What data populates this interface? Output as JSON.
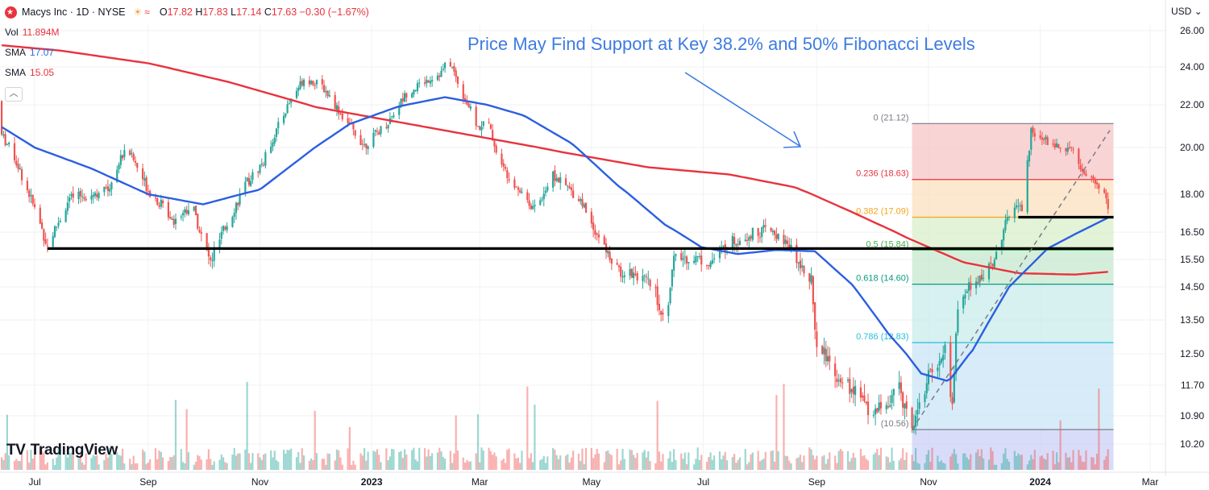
{
  "header": {
    "symbol": "Macys Inc · 1D · NYSE",
    "open_label": "O",
    "open": "17.82",
    "high_label": "H",
    "high": "17.83",
    "low_label": "L",
    "low": "17.14",
    "close_label": "C",
    "close": "17.63",
    "change": "−0.30 (−1.67%)"
  },
  "indicators": {
    "vol_label": "Vol",
    "vol_value": "11.894M",
    "sma1_label": "SMA",
    "sma1_value": "17.07",
    "sma2_label": "SMA",
    "sma2_value": "15.05",
    "collapse_icon": "chevron-up-icon"
  },
  "currency": "USD",
  "brand": {
    "name": "TradingView",
    "icon": "tradingview-logo-icon"
  },
  "colors": {
    "up": "#26a69a",
    "down": "#ef5350",
    "sma_fast": "#2b5fe0",
    "sma_slow": "#e8333d",
    "annotation": "#3d7ce0",
    "support": "#000000"
  },
  "chart_data": {
    "type": "candlestick",
    "title": "Price May Find Support at Key 38.2% and 50% Fibonacci Levels",
    "y_ticks": [
      "26.00",
      "24.00",
      "22.00",
      "20.00",
      "18.00",
      "16.50",
      "15.50",
      "14.50",
      "13.50",
      "12.50",
      "11.70",
      "10.90",
      "10.20"
    ],
    "x_ticks": [
      "Jul",
      "Sep",
      "Nov",
      "2023",
      "Mar",
      "May",
      "Jul",
      "Sep",
      "Nov",
      "2024",
      "Mar"
    ],
    "ylim": [
      9.8,
      26.6
    ],
    "fibonacci": {
      "levels": [
        {
          "ratio": "0",
          "label": "0 (21.12)",
          "value": 21.12
        },
        {
          "ratio": "0.236",
          "label": "0.236 (18.63)",
          "value": 18.63
        },
        {
          "ratio": "0.382",
          "label": "0.382 (17.09)",
          "value": 17.09
        },
        {
          "ratio": "0.5",
          "label": "0.5 (15.84)",
          "value": 15.84
        },
        {
          "ratio": "0.618",
          "label": "0.618 (14.60)",
          "value": 14.6
        },
        {
          "ratio": "0.786",
          "label": "0.786 (12.83)",
          "value": 12.83
        },
        {
          "ratio": "1",
          "label": "(10.56)",
          "value": 10.56
        }
      ],
      "start_date": "2023-10-23",
      "end_date": "2024-02-10"
    },
    "support_lines": [
      {
        "value": 15.9,
        "from": "2022-07-08",
        "to": "2024-02-10"
      },
      {
        "value": 17.09,
        "from": "2023-12-20",
        "to": "2024-02-10"
      }
    ],
    "trend_line": {
      "from_date": "2023-10-23",
      "from_value": 10.56,
      "to_date": "2024-02-08",
      "to_value": 20.8
    },
    "sma_fast_label": "SMA 17.07",
    "sma_slow_label": "SMA 15.05",
    "price_anchors": [
      [
        "2022-06-01",
        22.2
      ],
      [
        "2022-06-10",
        21.0
      ],
      [
        "2022-06-20",
        19.6
      ],
      [
        "2022-07-08",
        16.0
      ],
      [
        "2022-07-20",
        17.8
      ],
      [
        "2022-08-10",
        18.2
      ],
      [
        "2022-08-20",
        20.1
      ],
      [
        "2022-09-01",
        18.2
      ],
      [
        "2022-09-15",
        17.0
      ],
      [
        "2022-09-25",
        17.6
      ],
      [
        "2022-10-01",
        16.1
      ],
      [
        "2022-10-05",
        15.4
      ],
      [
        "2022-10-15",
        17.0
      ],
      [
        "2022-10-25",
        18.5
      ],
      [
        "2022-11-03",
        19.4
      ],
      [
        "2022-11-10",
        20.8
      ],
      [
        "2022-11-18",
        22.3
      ],
      [
        "2022-11-25",
        23.4
      ],
      [
        "2022-12-05",
        23.0
      ],
      [
        "2022-12-15",
        21.6
      ],
      [
        "2022-12-28",
        20.1
      ],
      [
        "2023-01-10",
        21.2
      ],
      [
        "2023-01-20",
        22.6
      ],
      [
        "2023-01-31",
        23.3
      ],
      [
        "2023-02-08",
        23.7
      ],
      [
        "2023-02-12",
        24.4
      ],
      [
        "2023-02-20",
        22.5
      ],
      [
        "2023-02-28",
        20.9
      ],
      [
        "2023-03-05",
        21.3
      ],
      [
        "2023-03-12",
        19.3
      ],
      [
        "2023-03-20",
        18.5
      ],
      [
        "2023-03-31",
        17.4
      ],
      [
        "2023-04-10",
        18.8
      ],
      [
        "2023-04-25",
        17.8
      ],
      [
        "2023-05-05",
        16.3
      ],
      [
        "2023-05-15",
        15.1
      ],
      [
        "2023-05-25",
        15.0
      ],
      [
        "2023-06-05",
        14.4
      ],
      [
        "2023-06-10",
        13.3
      ],
      [
        "2023-06-15",
        15.5
      ],
      [
        "2023-06-25",
        15.6
      ],
      [
        "2023-07-05",
        15.4
      ],
      [
        "2023-07-15",
        16.1
      ],
      [
        "2023-07-25",
        16.4
      ],
      [
        "2023-08-05",
        16.6
      ],
      [
        "2023-08-15",
        16.1
      ],
      [
        "2023-08-25",
        15.2
      ],
      [
        "2023-08-29",
        14.8
      ],
      [
        "2023-08-31",
        13.0
      ],
      [
        "2023-09-10",
        12.1
      ],
      [
        "2023-09-20",
        11.6
      ],
      [
        "2023-10-01",
        11.0
      ],
      [
        "2023-10-10",
        11.2
      ],
      [
        "2023-10-15",
        11.7
      ],
      [
        "2023-10-23",
        10.7
      ],
      [
        "2023-11-01",
        11.9
      ],
      [
        "2023-11-10",
        12.6
      ],
      [
        "2023-11-14",
        11.2
      ],
      [
        "2023-11-17",
        13.8
      ],
      [
        "2023-11-24",
        14.6
      ],
      [
        "2023-12-05",
        15.2
      ],
      [
        "2023-12-12",
        16.6
      ],
      [
        "2023-12-18",
        17.5
      ],
      [
        "2023-12-22",
        17.4
      ],
      [
        "2023-12-27",
        20.7
      ],
      [
        "2024-01-05",
        20.3
      ],
      [
        "2024-01-12",
        20.0
      ],
      [
        "2024-01-18",
        20.1
      ],
      [
        "2024-01-24",
        18.9
      ],
      [
        "2024-01-30",
        18.6
      ],
      [
        "2024-02-05",
        17.9
      ],
      [
        "2024-02-07",
        17.6
      ]
    ],
    "sma_fast_anchors": [
      [
        "2022-06-01",
        21.6
      ],
      [
        "2022-07-01",
        20.0
      ],
      [
        "2022-08-01",
        19.1
      ],
      [
        "2022-09-01",
        18.0
      ],
      [
        "2022-10-01",
        17.6
      ],
      [
        "2022-11-01",
        18.2
      ],
      [
        "2022-12-01",
        20.0
      ],
      [
        "2022-12-20",
        21.1
      ],
      [
        "2023-01-15",
        21.9
      ],
      [
        "2023-02-10",
        22.4
      ],
      [
        "2023-03-05",
        22.0
      ],
      [
        "2023-03-25",
        21.5
      ],
      [
        "2023-04-20",
        20.2
      ],
      [
        "2023-05-15",
        18.4
      ],
      [
        "2023-06-10",
        16.8
      ],
      [
        "2023-06-30",
        15.95
      ],
      [
        "2023-07-20",
        15.7
      ],
      [
        "2023-08-10",
        15.85
      ],
      [
        "2023-08-31",
        15.8
      ],
      [
        "2023-09-20",
        14.6
      ],
      [
        "2023-10-10",
        13.1
      ],
      [
        "2023-10-28",
        12.0
      ],
      [
        "2023-11-12",
        11.8
      ],
      [
        "2023-11-25",
        12.6
      ],
      [
        "2023-12-15",
        14.5
      ],
      [
        "2024-01-05",
        15.9
      ],
      [
        "2024-01-25",
        16.6
      ],
      [
        "2024-02-07",
        17.07
      ]
    ],
    "sma_slow_anchors": [
      [
        "2022-06-01",
        25.3
      ],
      [
        "2022-07-15",
        24.9
      ],
      [
        "2022-09-01",
        24.2
      ],
      [
        "2022-10-15",
        23.2
      ],
      [
        "2022-12-01",
        21.9
      ],
      [
        "2023-01-15",
        21.2
      ],
      [
        "2023-03-01",
        20.5
      ],
      [
        "2023-04-15",
        19.8
      ],
      [
        "2023-06-01",
        19.15
      ],
      [
        "2023-07-15",
        18.85
      ],
      [
        "2023-08-20",
        18.3
      ],
      [
        "2023-09-20",
        17.3
      ],
      [
        "2023-10-20",
        16.3
      ],
      [
        "2023-11-20",
        15.4
      ],
      [
        "2023-12-20",
        15.0
      ],
      [
        "2024-01-20",
        14.95
      ],
      [
        "2024-02-07",
        15.05
      ]
    ]
  }
}
